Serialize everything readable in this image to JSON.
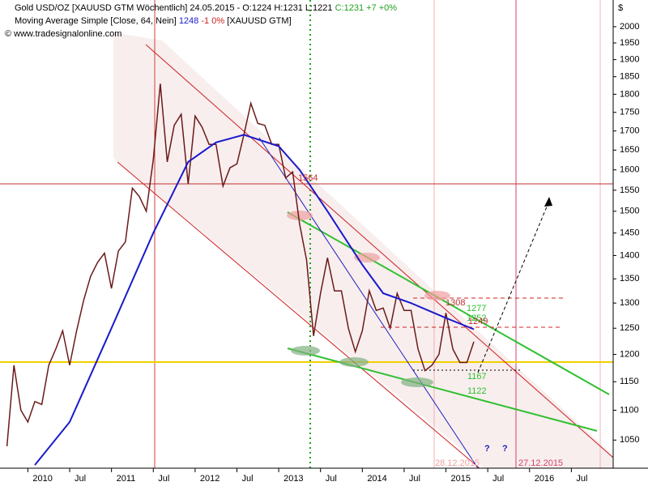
{
  "chart_data": {
    "type": "line",
    "header": {
      "ohl": "O:1224 H:1231 L:1221",
      "close": "C:1231 +7 +0%",
      "ma_value": "1248",
      "ma_change": "-1 0%",
      "ma_symbol": "[XAUUSD GTM]",
      "copyright": "© www.tradesignalonline.com"
    },
    "y_unit": "$",
    "log": true,
    "ylim": [
      1005,
      2085
    ],
    "yticks": [
      1050,
      1100,
      1150,
      1200,
      1250,
      1300,
      1350,
      1400,
      1450,
      1500,
      1550,
      1600,
      1650,
      1700,
      1750,
      1800,
      1850,
      1900,
      1950,
      2000
    ],
    "xlim": [
      "2009-09",
      "2017-01"
    ],
    "xticks": [
      {
        "value": "2010-01",
        "label": "2010"
      },
      {
        "value": "2010-07",
        "label": "Jul"
      },
      {
        "value": "2011-01",
        "label": "2011"
      },
      {
        "value": "2011-07",
        "label": "Jul"
      },
      {
        "value": "2012-01",
        "label": "2012"
      },
      {
        "value": "2012-07",
        "label": "Jul"
      },
      {
        "value": "2013-01",
        "label": "2013"
      },
      {
        "value": "2013-07",
        "label": "Jul"
      },
      {
        "value": "2014-01",
        "label": "2014"
      },
      {
        "value": "2014-07",
        "label": "Jul"
      },
      {
        "value": "2015-01",
        "label": "2015"
      },
      {
        "value": "2015-07",
        "label": "Jul"
      },
      {
        "value": "2016-01",
        "label": "2016"
      },
      {
        "value": "2016-07",
        "label": "Jul"
      }
    ],
    "series": [
      {
        "name": "Gold USD/OZ [XAUUSD GTM  Wöchentlich] 24.05.2015 -",
        "color": "#6b1a1a",
        "x": [
          "2009-10",
          "2009-11",
          "2009-12",
          "2010-01",
          "2010-02",
          "2010-03",
          "2010-04",
          "2010-05",
          "2010-06",
          "2010-07",
          "2010-08",
          "2010-09",
          "2010-10",
          "2010-11",
          "2010-12",
          "2011-01",
          "2011-02",
          "2011-03",
          "2011-04",
          "2011-05",
          "2011-06",
          "2011-07",
          "2011-08",
          "2011-09",
          "2011-10",
          "2011-11",
          "2011-12",
          "2012-01",
          "2012-02",
          "2012-03",
          "2012-04",
          "2012-05",
          "2012-06",
          "2012-07",
          "2012-08",
          "2012-09",
          "2012-10",
          "2012-11",
          "2012-12",
          "2013-01",
          "2013-02",
          "2013-03",
          "2013-04",
          "2013-05",
          "2013-06",
          "2013-07",
          "2013-08",
          "2013-09",
          "2013-10",
          "2013-11",
          "2013-12",
          "2014-01",
          "2014-02",
          "2014-03",
          "2014-04",
          "2014-05",
          "2014-06",
          "2014-07",
          "2014-08",
          "2014-09",
          "2014-10",
          "2014-11",
          "2014-12",
          "2015-01",
          "2015-02",
          "2015-03",
          "2015-04",
          "2015-05"
        ],
        "values": [
          1040,
          1180,
          1100,
          1080,
          1115,
          1110,
          1180,
          1210,
          1245,
          1180,
          1245,
          1305,
          1355,
          1385,
          1405,
          1330,
          1410,
          1430,
          1555,
          1535,
          1500,
          1625,
          1830,
          1620,
          1715,
          1745,
          1565,
          1740,
          1710,
          1665,
          1665,
          1560,
          1605,
          1615,
          1690,
          1775,
          1720,
          1715,
          1665,
          1665,
          1580,
          1595,
          1470,
          1390,
          1235,
          1320,
          1395,
          1325,
          1325,
          1250,
          1205,
          1245,
          1325,
          1285,
          1290,
          1250,
          1320,
          1285,
          1285,
          1210,
          1170,
          1180,
          1200,
          1280,
          1210,
          1185,
          1185,
          1224
        ]
      },
      {
        "name": "Moving Average Simple [Close, 64, Nein]",
        "color": "#1a1acc",
        "x": [
          "2010-02",
          "2010-07",
          "2011-01",
          "2011-07",
          "2011-12",
          "2012-04",
          "2012-08",
          "2013-01",
          "2013-04",
          "2013-08",
          "2014-01",
          "2014-04",
          "2014-08",
          "2015-01",
          "2015-05"
        ],
        "values": [
          1010,
          1080,
          1250,
          1450,
          1620,
          1670,
          1690,
          1660,
          1600,
          1500,
          1380,
          1320,
          1300,
          1270,
          1248
        ]
      }
    ],
    "annotations": [
      "1564",
      "1308",
      "1277",
      "1252",
      "1249",
      "1167",
      "1122",
      "28.12.2015",
      "27.12.2015",
      "?",
      "?"
    ]
  }
}
